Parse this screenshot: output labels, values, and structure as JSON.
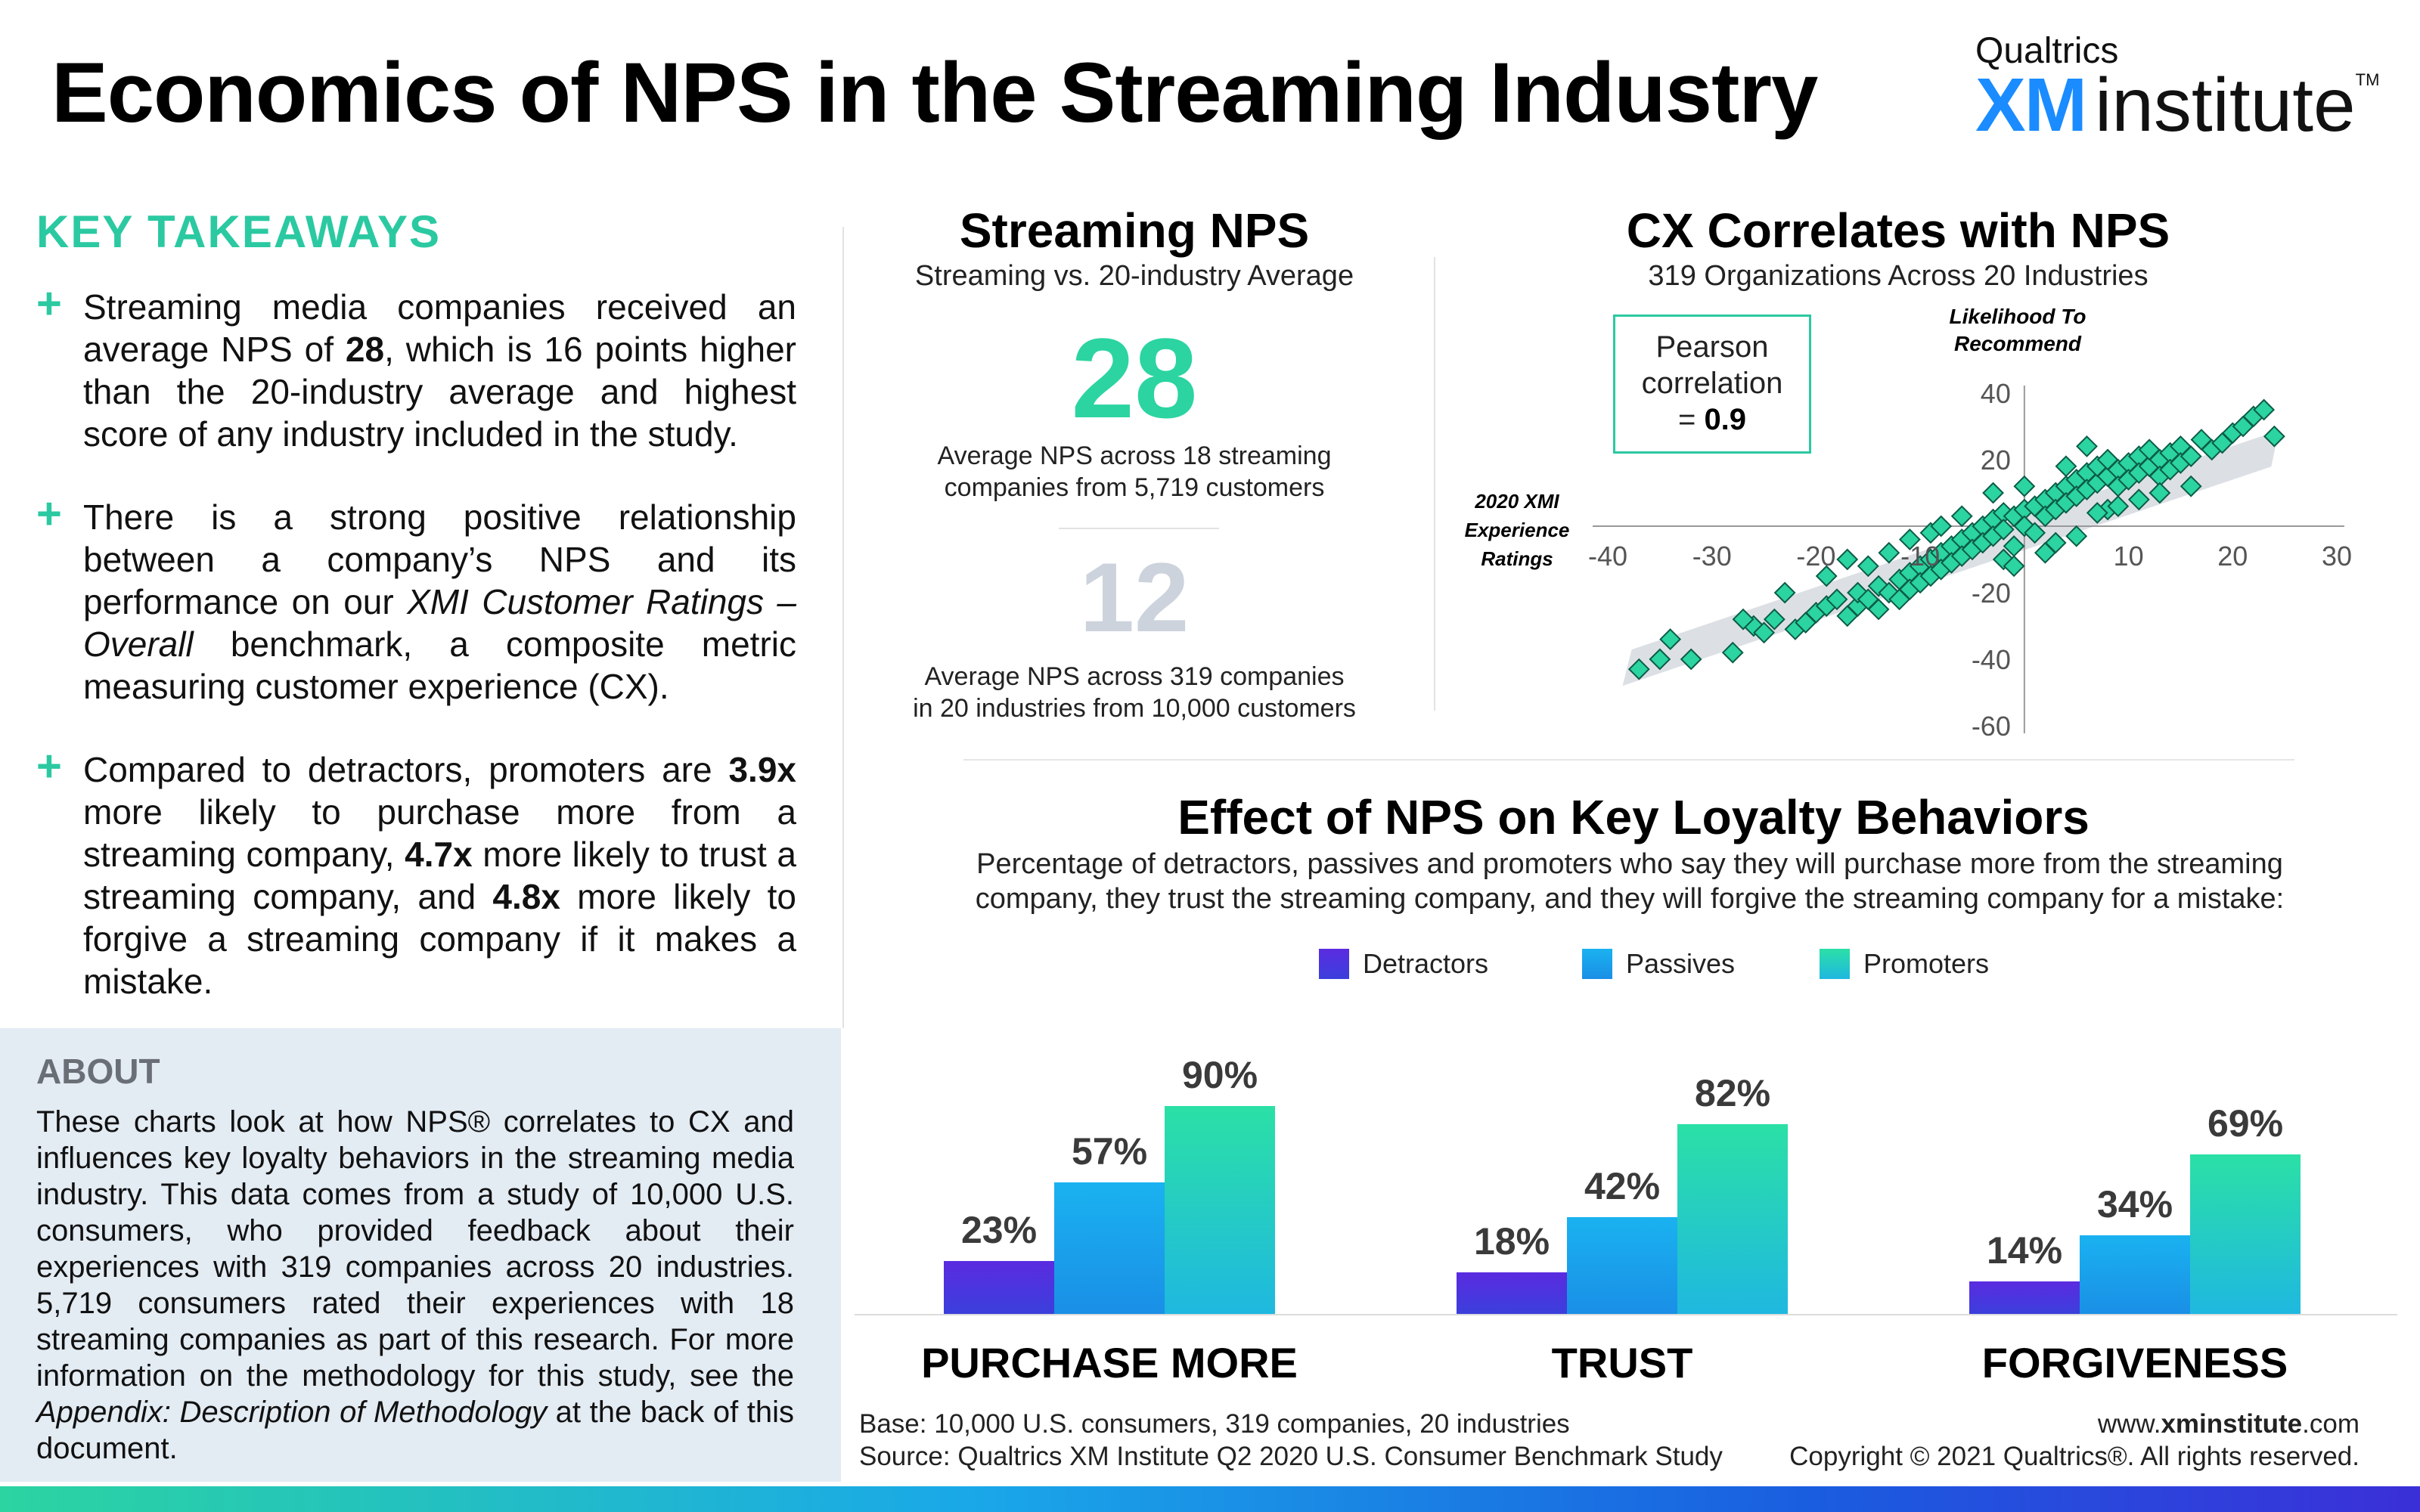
{
  "header": {
    "title": "Economics of NPS in the Streaming Industry",
    "logo_top": "Qualtrics",
    "logo_xm": "XM",
    "logo_institute": "institute",
    "logo_tm": "TM"
  },
  "takeaways": {
    "title": "KEY TAKEAWAYS",
    "items": [
      {
        "pre": "Streaming media companies received an average NPS of ",
        "bold": "28",
        "post": ", which is 16 points higher than the 20-industry average and highest score of any industry included in the study."
      },
      {
        "pre": "There is a strong positive relationship between a company’s NPS and its performance on our ",
        "italic": "XMI Customer Ratings – Overall",
        "post": " benchmark, a composite metric measuring customer experience (CX)."
      },
      {
        "pre": "Compared to detractors, promoters are ",
        "b1": "3.9x",
        "m1": " more likely to purchase more from a streaming company, ",
        "b2": "4.7x",
        "m2": " more likely to trust a streaming company, and ",
        "b3": "4.8x",
        "post": " more likely to forgive a streaming company if it makes a mistake."
      }
    ]
  },
  "about": {
    "title": "ABOUT",
    "pre": "These charts look at how NPS® correlates to CX and influences key loyalty behaviors in the streaming media industry. This data comes from a study of 10,000 U.S. consumers, who provided feedback about their experiences with 319 companies across 20 industries. 5,719 consumers rated their experiences with 18 streaming companies as part of this research. For more information on the methodology for this study, see the ",
    "italic": "Appendix: Description of Methodology",
    "post": " at the back of this document."
  },
  "streaming_nps": {
    "title": "Streaming NPS",
    "subtitle": "Streaming vs. 20-industry Average",
    "value": "28",
    "caption_1": "Average NPS across 18 streaming",
    "caption_2": "companies from 5,719 customers",
    "avg_value": "12",
    "avg_caption_1": "Average NPS across 319 companies",
    "avg_caption_2": "in 20 industries from 10,000 customers"
  },
  "correlation": {
    "title": "CX Correlates with NPS",
    "subtitle": "319 Organizations Across 20 Industries",
    "pearson_1": "Pearson",
    "pearson_2": "correlation",
    "pearson_eq": "= ",
    "pearson_value": "0.9",
    "y_title_1": "Likelihood To",
    "y_title_2": "Recommend",
    "x_title_1": "2020 XMI",
    "x_title_2": "Experience",
    "x_title_3": "Ratings"
  },
  "loyalty": {
    "title": "Effect of NPS on Key Loyalty Behaviors",
    "subtitle_1": "Percentage of detractors, passives and promoters who say they will purchase more from the streaming",
    "subtitle_2": "company, they trust the streaming company, and they will forgive the streaming company for a mistake:"
  },
  "chart_data": [
    {
      "type": "bar",
      "title": "Effect of NPS on Key Loyalty Behaviors",
      "categories": [
        "PURCHASE MORE",
        "TRUST",
        "FORGIVENESS"
      ],
      "series": [
        {
          "name": "Detractors",
          "values": [
            23,
            18,
            14
          ],
          "labels": [
            "23%",
            "18%",
            "14%"
          ],
          "color_top": "#5b2be0",
          "color_bottom": "#3b3fdc"
        },
        {
          "name": "Passives",
          "values": [
            57,
            42,
            34
          ],
          "labels": [
            "57%",
            "42%",
            "34%"
          ],
          "color_top": "#1ab2f0",
          "color_bottom": "#1a8fe6"
        },
        {
          "name": "Promoters",
          "values": [
            90,
            82,
            69
          ],
          "labels": [
            "90%",
            "82%",
            "69%"
          ],
          "color_top": "#2be0a6",
          "color_bottom": "#1fb8e0"
        }
      ],
      "ylim": [
        0,
        100
      ]
    },
    {
      "type": "scatter",
      "title": "CX Correlates with NPS",
      "xlabel": "2020 XMI Experience Ratings",
      "ylabel": "Likelihood To Recommend",
      "xlim": [
        -40,
        30
      ],
      "ylim": [
        -60,
        40
      ],
      "x_ticks": [
        "-40",
        "-30",
        "-20",
        "-10",
        "0",
        "10",
        "20",
        "30"
      ],
      "y_ticks": [
        "40",
        "20",
        "0",
        "-20",
        "-40",
        "-60"
      ],
      "trend": {
        "from": [
          -38,
          -43
        ],
        "to": [
          24,
          27
        ]
      },
      "point_color": "#2bd4a1",
      "points": [
        [
          -37,
          -43
        ],
        [
          -35,
          -40
        ],
        [
          -34,
          -34
        ],
        [
          -32,
          -40
        ],
        [
          -28,
          -38
        ],
        [
          -26,
          -30
        ],
        [
          -25,
          -32
        ],
        [
          -24,
          -28
        ],
        [
          -22,
          -31
        ],
        [
          -21,
          -29
        ],
        [
          -20,
          -26
        ],
        [
          -19,
          -24
        ],
        [
          -18,
          -22
        ],
        [
          -17,
          -27
        ],
        [
          -16,
          -24
        ],
        [
          -16,
          -20
        ],
        [
          -15,
          -22
        ],
        [
          -14,
          -18
        ],
        [
          -14,
          -25
        ],
        [
          -13,
          -20
        ],
        [
          -12,
          -16
        ],
        [
          -12,
          -22
        ],
        [
          -11,
          -14
        ],
        [
          -11,
          -19
        ],
        [
          -10,
          -12
        ],
        [
          -10,
          -17
        ],
        [
          -9,
          -10
        ],
        [
          -9,
          -15
        ],
        [
          -8,
          -8
        ],
        [
          -8,
          -13
        ],
        [
          -7,
          -6
        ],
        [
          -7,
          -11
        ],
        [
          -6,
          -4
        ],
        [
          -6,
          -9
        ],
        [
          -5,
          -2
        ],
        [
          -5,
          -7
        ],
        [
          -4,
          0
        ],
        [
          -4,
          -5
        ],
        [
          -3,
          2
        ],
        [
          -3,
          -3
        ],
        [
          -2,
          4
        ],
        [
          -2,
          -1
        ],
        [
          -1,
          3
        ],
        [
          -1,
          -6
        ],
        [
          0,
          5
        ],
        [
          0,
          0
        ],
        [
          1,
          6
        ],
        [
          1,
          -2
        ],
        [
          2,
          8
        ],
        [
          2,
          3
        ],
        [
          3,
          10
        ],
        [
          3,
          5
        ],
        [
          4,
          12
        ],
        [
          4,
          7
        ],
        [
          5,
          14
        ],
        [
          5,
          9
        ],
        [
          6,
          16
        ],
        [
          6,
          11
        ],
        [
          7,
          13
        ],
        [
          7,
          18
        ],
        [
          8,
          15
        ],
        [
          8,
          20
        ],
        [
          9,
          17
        ],
        [
          9,
          12
        ],
        [
          10,
          19
        ],
        [
          10,
          14
        ],
        [
          11,
          21
        ],
        [
          11,
          16
        ],
        [
          12,
          18
        ],
        [
          12,
          23
        ],
        [
          13,
          20
        ],
        [
          13,
          15
        ],
        [
          14,
          22
        ],
        [
          14,
          17
        ],
        [
          15,
          24
        ],
        [
          15,
          19
        ],
        [
          16,
          21
        ],
        [
          17,
          26
        ],
        [
          18,
          23
        ],
        [
          19,
          25
        ],
        [
          20,
          28
        ],
        [
          21,
          30
        ],
        [
          22,
          33
        ],
        [
          23,
          35
        ],
        [
          24,
          27
        ],
        [
          -13,
          -8
        ],
        [
          -9,
          -2
        ],
        [
          -6,
          3
        ],
        [
          -2,
          -10
        ],
        [
          2,
          -8
        ],
        [
          5,
          -3
        ],
        [
          8,
          5
        ],
        [
          11,
          8
        ],
        [
          -15,
          -12
        ],
        [
          -19,
          -15
        ],
        [
          -23,
          -20
        ],
        [
          -3,
          10
        ],
        [
          0,
          12
        ],
        [
          4,
          18
        ],
        [
          7,
          4
        ],
        [
          -27,
          -28
        ],
        [
          -1,
          -12
        ],
        [
          3,
          -5
        ],
        [
          6,
          24
        ],
        [
          9,
          6
        ],
        [
          13,
          10
        ],
        [
          16,
          12
        ],
        [
          -8,
          0
        ],
        [
          -11,
          -4
        ],
        [
          -17,
          -10
        ]
      ]
    }
  ],
  "legend": {
    "detractors": "Detractors",
    "passives": "Passives",
    "promoters": "Promoters"
  },
  "footer": {
    "base": "Base: 10,000 U.S. consumers, 319 companies, 20 industries",
    "source": "Source: Qualtrics XM Institute Q2 2020 U.S. Consumer Benchmark Study",
    "url_pre": "www.",
    "url_bold": "xminstitute",
    "url_post": ".com",
    "copyright": "Copyright © 2021 Qualtrics®. All rights reserved."
  }
}
